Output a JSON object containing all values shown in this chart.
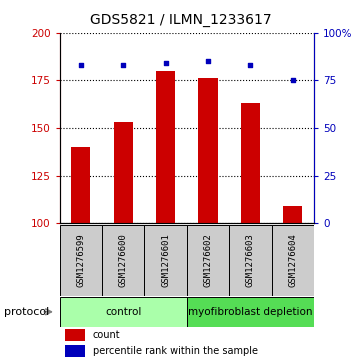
{
  "title": "GDS5821 / ILMN_1233617",
  "samples": [
    "GSM1276599",
    "GSM1276600",
    "GSM1276601",
    "GSM1276602",
    "GSM1276603",
    "GSM1276604"
  ],
  "counts": [
    140,
    153,
    180,
    176,
    163,
    109
  ],
  "percentile_ranks": [
    83,
    83,
    84,
    85,
    83,
    75
  ],
  "ylim_left": [
    100,
    200
  ],
  "ylim_right": [
    0,
    100
  ],
  "yticks_left": [
    100,
    125,
    150,
    175,
    200
  ],
  "yticks_right": [
    0,
    25,
    50,
    75,
    100
  ],
  "ytick_labels_right": [
    "0",
    "25",
    "50",
    "75",
    "100%"
  ],
  "groups": [
    {
      "label": "control",
      "span": 3,
      "color": "#aaffaa"
    },
    {
      "label": "myofibroblast depletion",
      "span": 3,
      "color": "#55dd55"
    }
  ],
  "bar_color": "#cc0000",
  "scatter_color": "#0000bb",
  "bar_width": 0.45,
  "bg_color": "#ffffff",
  "sample_box_color": "#cccccc",
  "left_tick_color": "#cc0000",
  "right_tick_color": "#0000bb",
  "title_fontsize": 10,
  "label_fontsize": 6.5,
  "proto_fontsize": 7.5,
  "legend_fontsize": 7
}
